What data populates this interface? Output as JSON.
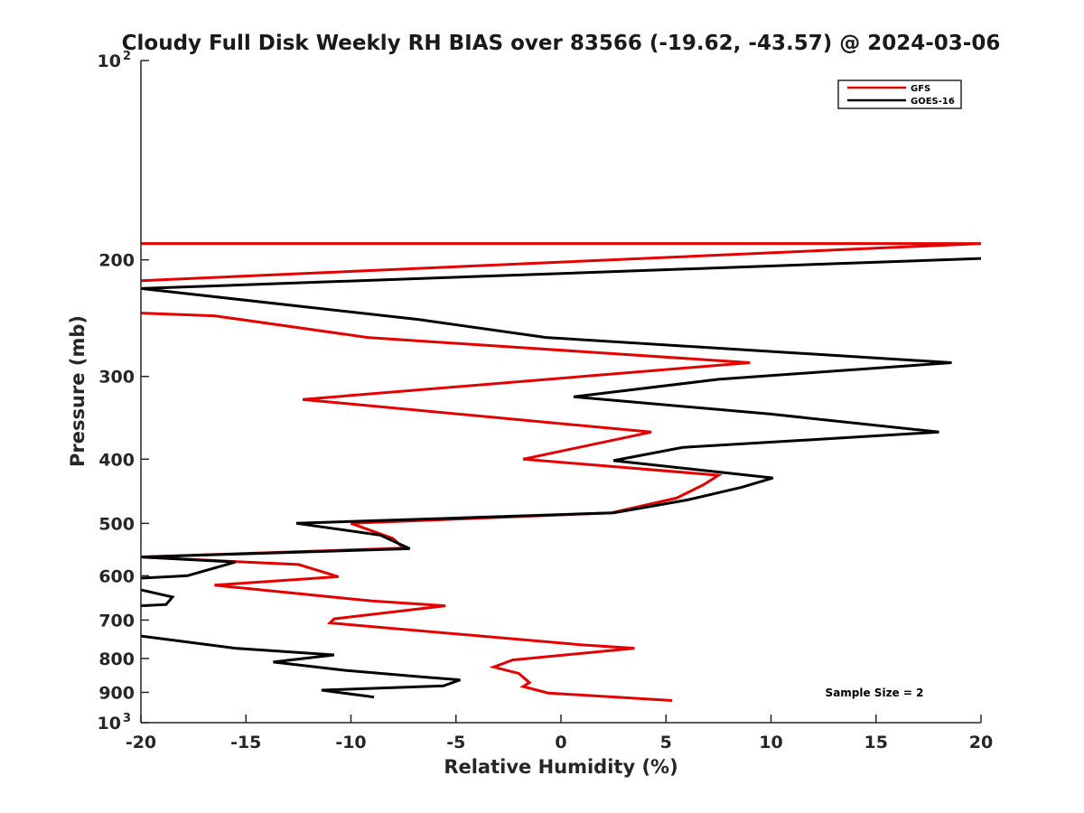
{
  "chart_data": {
    "type": "line",
    "title": "Cloudy Full Disk Weekly RH BIAS over 83566 (-19.62, -43.57) @ 2024-03-06",
    "xlabel": "Relative Humidity (%)",
    "ylabel": "Pressure (mb)",
    "xlim": [
      -20,
      20
    ],
    "ylim": [
      100,
      1000
    ],
    "y_scale": "log",
    "y_reversed": true,
    "grid": false,
    "legend_position": "top-right",
    "x_ticks": [
      {
        "value": -20,
        "label": "-20"
      },
      {
        "value": -15,
        "label": "-15"
      },
      {
        "value": -10,
        "label": "-10"
      },
      {
        "value": -5,
        "label": "-5"
      },
      {
        "value": 0,
        "label": "0"
      },
      {
        "value": 5,
        "label": "5"
      },
      {
        "value": 10,
        "label": "10"
      },
      {
        "value": 15,
        "label": "15"
      },
      {
        "value": 20,
        "label": "20"
      }
    ],
    "y_ticks": [
      {
        "value": 100,
        "label": "10",
        "exp": "2"
      },
      {
        "value": 200,
        "label": "200"
      },
      {
        "value": 300,
        "label": "300"
      },
      {
        "value": 400,
        "label": "400"
      },
      {
        "value": 500,
        "label": "500"
      },
      {
        "value": 600,
        "label": "600"
      },
      {
        "value": 700,
        "label": "700"
      },
      {
        "value": 800,
        "label": "800"
      },
      {
        "value": 900,
        "label": "900"
      },
      {
        "value": 1000,
        "label": "10",
        "exp": "3"
      }
    ],
    "series": [
      {
        "name": "GFS",
        "color": "#e50000",
        "points": [
          [
            -22,
            189
          ],
          [
            20,
            189
          ],
          [
            -20,
            215
          ],
          [
            -22,
            216
          ],
          [
            -21,
            240
          ],
          [
            -16.5,
            243
          ],
          [
            -9.2,
            262
          ],
          [
            9,
            286
          ],
          [
            -12.3,
            325
          ],
          [
            4.3,
            364
          ],
          [
            -1.8,
            400
          ],
          [
            7.5,
            423
          ],
          [
            6.8,
            437
          ],
          [
            5.5,
            458
          ],
          [
            2.4,
            482
          ],
          [
            -10,
            500
          ],
          [
            -8,
            527
          ],
          [
            -7.5,
            545
          ],
          [
            -20,
            562
          ],
          [
            -15,
            572
          ],
          [
            -12.5,
            577
          ],
          [
            -10.6,
            602
          ],
          [
            -16.5,
            620
          ],
          [
            -9,
            655
          ],
          [
            -5.5,
            666
          ],
          [
            -10.8,
            697
          ],
          [
            -11,
            707
          ],
          [
            1,
            763
          ],
          [
            3.5,
            772
          ],
          [
            -2.3,
            804
          ],
          [
            -3.2,
            824
          ],
          [
            -2,
            843
          ],
          [
            -1.5,
            870
          ],
          [
            -1.8,
            882
          ],
          [
            -0.6,
            902
          ],
          [
            5.3,
            926
          ]
        ]
      },
      {
        "name": "GOES-16",
        "color": "#000000",
        "points": [
          [
            20,
            199
          ],
          [
            -20,
            221
          ],
          [
            -6.8,
            246
          ],
          [
            -0.7,
            262
          ],
          [
            18.6,
            286
          ],
          [
            7.5,
            303
          ],
          [
            0.6,
            322
          ],
          [
            10,
            342
          ],
          [
            18,
            364
          ],
          [
            5.8,
            384
          ],
          [
            2.5,
            402
          ],
          [
            10.1,
            427
          ],
          [
            8.6,
            441
          ],
          [
            6,
            461
          ],
          [
            2.5,
            482
          ],
          [
            -12.6,
            500
          ],
          [
            -8.6,
            521
          ],
          [
            -7.2,
            546
          ],
          [
            -20,
            562
          ],
          [
            -15.5,
            572
          ],
          [
            -17.8,
            600
          ],
          [
            -20,
            605
          ],
          [
            -20.5,
            625
          ],
          [
            -18.5,
            646
          ],
          [
            -18.8,
            663
          ],
          [
            -20,
            666
          ],
          [
            -22,
            700
          ],
          [
            -20,
            740
          ],
          [
            -15.5,
            772
          ],
          [
            -10.8,
            790
          ],
          [
            -13.7,
            810
          ],
          [
            -10.4,
            833
          ],
          [
            -6.6,
            853
          ],
          [
            -4.8,
            862
          ],
          [
            -5.6,
            880
          ],
          [
            -11.4,
            893
          ],
          [
            -8.9,
            915
          ]
        ]
      }
    ],
    "annotations": [
      {
        "text": "Sample Size = 2",
        "position": "bottom-right"
      }
    ]
  }
}
